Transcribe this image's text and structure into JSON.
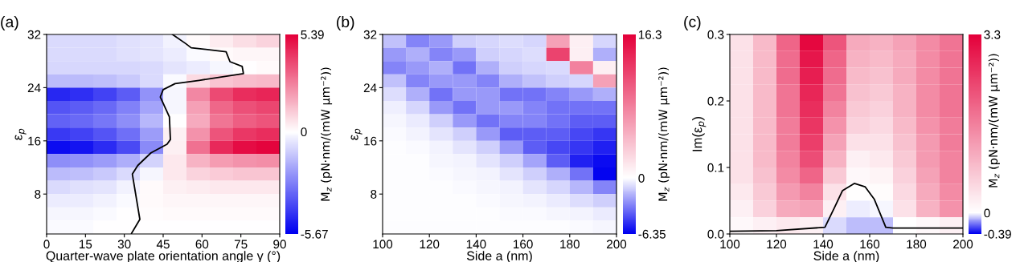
{
  "chart_data": [
    {
      "type": "heatmap",
      "title": "(a)",
      "xlabel": "Quarter-wave plate orientation angle γ (°)",
      "ylabel": "ε$_{p}$",
      "clabel": "M$_{z}$ (pN·nm/(mW μm⁻²))",
      "x": [
        4.5,
        13.5,
        22.5,
        31.5,
        40.5,
        49.5,
        58.5,
        67.5,
        76.5,
        85.5
      ],
      "xlim": [
        0,
        90
      ],
      "xticks": [
        0,
        15,
        30,
        45,
        60,
        75,
        90
      ],
      "ylim": [
        2,
        32
      ],
      "yticks": [
        8,
        16,
        24,
        32
      ],
      "clim": [
        -5.67,
        5.39
      ],
      "cticks": [
        {
          "value": -5.67,
          "label": "-5.67"
        },
        0,
        5.39
      ],
      "cells": [
        [
          -0.8,
          -0.8,
          -0.8,
          -0.7,
          -0.6,
          -0.3,
          0.1,
          0.4,
          0.7,
          0.9
        ],
        [
          -0.8,
          -0.8,
          -0.8,
          -0.7,
          -0.6,
          -0.4,
          -0.1,
          0.1,
          0.2,
          0.2
        ],
        [
          -0.9,
          -0.9,
          -0.9,
          -0.9,
          -0.8,
          -0.6,
          -0.4,
          -0.2,
          0,
          0.1
        ],
        [
          -1.5,
          -1.5,
          -1.4,
          -1.2,
          -0.8,
          -0.1,
          0.8,
          1.2,
          1.4,
          1.5
        ],
        [
          -4.8,
          -4.6,
          -4.2,
          -3.6,
          -2.4,
          -0.2,
          2.5,
          3.8,
          4.4,
          4.6
        ],
        [
          -3.8,
          -3.6,
          -3.3,
          -2.8,
          -2.0,
          -0.2,
          2.0,
          3.2,
          3.7,
          3.9
        ],
        [
          -3.5,
          -3.3,
          -3.0,
          -2.5,
          -1.6,
          0,
          1.8,
          2.9,
          3.4,
          3.6
        ],
        [
          -4.4,
          -4.2,
          -3.8,
          -3.2,
          -2.2,
          0.3,
          2.3,
          3.6,
          4.2,
          4.4
        ],
        [
          -5.4,
          -5.2,
          -4.7,
          -4.0,
          -2.6,
          0.3,
          3.0,
          4.5,
          5.1,
          5.3
        ],
        [
          -2.5,
          -2.4,
          -2.2,
          -1.8,
          -1.0,
          0.5,
          1.6,
          2.1,
          2.3,
          2.4
        ],
        [
          -1.5,
          -1.4,
          -1.2,
          -0.8,
          -0.2,
          0.5,
          0.9,
          1.1,
          1.2,
          1.2
        ],
        [
          -0.8,
          -0.7,
          -0.6,
          -0.3,
          0.1,
          0.3,
          0.4,
          0.5,
          0.5,
          0.5
        ],
        [
          -0.4,
          -0.4,
          -0.3,
          -0.1,
          0.1,
          0.2,
          0.2,
          0.2,
          0.2,
          0.2
        ],
        [
          -0.2,
          -0.2,
          -0.1,
          0,
          0.05,
          0.1,
          0.1,
          0.1,
          0.1,
          0.1
        ],
        [
          -0.1,
          -0.1,
          0,
          0,
          0,
          0,
          0,
          0,
          0,
          0
        ]
      ],
      "series": [
        {
          "type": "line",
          "color": "#000000",
          "x": [
            32.8,
            36,
            33.1,
            35.2,
            40.3,
            46.5,
            47.8,
            47.4,
            43.9,
            45,
            49.6,
            58.9,
            76,
            75.5,
            70.8,
            69.3,
            55.8,
            53.8,
            48.6
          ],
          "values": [
            2.1,
            4.2,
            11,
            12.3,
            14.2,
            15.5,
            16.2,
            19.6,
            22.6,
            23.7,
            24.6,
            25.1,
            26.1,
            27.2,
            27.9,
            29.4,
            30,
            30.6,
            32
          ]
        }
      ]
    },
    {
      "type": "heatmap",
      "title": "(b)",
      "xlabel": "Side a (nm)",
      "ylabel": "ε$_{p}$",
      "clabel": "M$_{z}$ (pN·nm/(mW μm⁻²))",
      "x": [
        105,
        115,
        125,
        135,
        145,
        155,
        165,
        175,
        185,
        195
      ],
      "xlim": [
        100,
        200
      ],
      "xticks": [
        100,
        120,
        140,
        160,
        180,
        200
      ],
      "ylim": [
        2,
        32
      ],
      "yticks": [
        8,
        16,
        24,
        32
      ],
      "clim": [
        -6.35,
        16.3
      ],
      "cticks": [
        {
          "value": -6.35,
          "label": "-6.35"
        },
        0,
        16.3
      ],
      "cells": [
        [
          -1.5,
          -3,
          -2.5,
          -1.2,
          -1,
          -0.8,
          -1.0,
          6,
          1,
          -1
        ],
        [
          -2.5,
          -2,
          -3,
          -2.5,
          -1.2,
          -1,
          -0.8,
          12,
          1,
          -2
        ],
        [
          -3,
          -2.5,
          -2,
          -3.5,
          -2,
          -1.2,
          -1,
          -0.9,
          8,
          1
        ],
        [
          -1.5,
          -3,
          -2.5,
          -2.5,
          -3,
          -2,
          -1.5,
          -1.2,
          -1.0,
          6
        ],
        [
          -0.8,
          -2,
          -3.5,
          -2.5,
          -2.5,
          -3.5,
          -3.5,
          -3,
          -2.5,
          -2
        ],
        [
          -0.4,
          -1,
          -2.5,
          -3.5,
          -2.5,
          -2.5,
          -3,
          -3.5,
          -3.5,
          -3.5
        ],
        [
          -0.2,
          -0.5,
          -1.2,
          -2.5,
          -3.5,
          -3,
          -3,
          -3.5,
          -4,
          -4
        ],
        [
          -0.1,
          -0.3,
          -0.6,
          -1.2,
          -2.5,
          -4,
          -4,
          -4,
          -4.5,
          -5
        ],
        [
          -0.05,
          -0.1,
          -0.3,
          -0.6,
          -1.2,
          -2.5,
          -4,
          -4.5,
          -5,
          -5.5
        ],
        [
          0,
          -0.05,
          -0.2,
          -0.3,
          -0.6,
          -1.2,
          -2.2,
          -4,
          -5.5,
          -6
        ],
        [
          0,
          0,
          -0.1,
          -0.2,
          -0.3,
          -0.6,
          -1.2,
          -2,
          -3.5,
          -6.2
        ],
        [
          0,
          0,
          -0.05,
          -0.1,
          -0.2,
          -0.3,
          -0.6,
          -1,
          -1.8,
          -3
        ],
        [
          0,
          0,
          0,
          -0.05,
          -0.1,
          -0.2,
          -0.3,
          -0.5,
          -0.8,
          -1.2
        ],
        [
          0,
          0,
          0,
          0,
          -0.05,
          -0.1,
          -0.1,
          -0.2,
          -0.3,
          -0.5
        ],
        [
          0,
          0,
          0,
          0,
          0,
          0,
          0,
          -0.05,
          -0.1,
          -0.2
        ]
      ]
    },
    {
      "type": "heatmap",
      "title": "(c)",
      "xlabel": "Side a (nm)",
      "ylabel": "Im(ε$_{p}$)",
      "clabel": "M$_{z}$ (pN·nm/(mW μm⁻²))",
      "x": [
        105,
        115,
        125,
        135,
        145,
        155,
        165,
        175,
        185,
        195
      ],
      "xlim": [
        100,
        200
      ],
      "xticks": [
        100,
        120,
        140,
        160,
        180,
        200
      ],
      "ylim": [
        0,
        0.3
      ],
      "yticks": [
        {
          "value": 0,
          "label": "0.0"
        },
        0.1,
        0.2,
        0.3
      ],
      "clim": [
        -0.39,
        3.3
      ],
      "cticks": [
        {
          "value": -0.39,
          "label": "-0.39"
        },
        0,
        3.3
      ],
      "cells": [
        [
          0.4,
          0.9,
          2.0,
          3.2,
          2.2,
          1.1,
          1.0,
          1.2,
          1.5,
          1.8
        ],
        [
          0.4,
          0.9,
          1.9,
          3.0,
          2.0,
          1.0,
          0.9,
          1.1,
          1.5,
          1.8
        ],
        [
          0.4,
          0.9,
          1.9,
          2.9,
          1.9,
          0.9,
          0.8,
          1.1,
          1.5,
          1.8
        ],
        [
          0.4,
          0.9,
          1.8,
          2.8,
          1.8,
          0.8,
          0.7,
          1.0,
          1.5,
          1.8
        ],
        [
          0.4,
          0.9,
          1.8,
          2.7,
          1.6,
          0.7,
          0.6,
          1.0,
          1.5,
          1.8
        ],
        [
          0.4,
          0.9,
          1.7,
          2.6,
          1.4,
          0.6,
          0.5,
          0.9,
          1.4,
          1.7
        ],
        [
          0.4,
          0.9,
          1.7,
          2.5,
          1.2,
          0.4,
          0.4,
          0.8,
          1.3,
          1.7
        ],
        [
          0.4,
          0.9,
          1.6,
          2.3,
          1.0,
          0.2,
          0.3,
          0.7,
          1.3,
          1.6
        ],
        [
          0.4,
          0.8,
          1.5,
          2.0,
          0.7,
          0.1,
          0.15,
          0.6,
          1.2,
          1.6
        ],
        [
          0.3,
          0.7,
          1.3,
          1.6,
          0.4,
          0.02,
          0.05,
          0.5,
          1.1,
          1.5
        ],
        [
          0.2,
          0.6,
          1.1,
          1.2,
          0.2,
          -0.02,
          -0.01,
          0.4,
          1.0,
          1.4
        ],
        [
          0.1,
          0.2,
          0.3,
          0.2,
          -0.05,
          -0.1,
          -0.1,
          0.0,
          0.1,
          0.2
        ]
      ],
      "series": [
        {
          "type": "line",
          "color": "#000000",
          "x": [
            100,
            120,
            140.8,
            144.8,
            148.3,
            153.4,
            158,
            162,
            166.9,
            170,
            200
          ],
          "values": [
            0.004,
            0.005,
            0.01,
            0.039,
            0.065,
            0.076,
            0.071,
            0.052,
            0.01,
            0.009,
            0.009
          ]
        }
      ]
    }
  ]
}
